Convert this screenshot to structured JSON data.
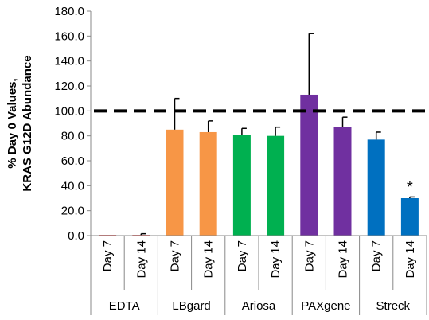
{
  "chart_data": {
    "type": "bar",
    "ylabel_lines": [
      "% Day 0 Values,",
      "KRAS G12D Abundance"
    ],
    "xlabel": "",
    "ylim": [
      0,
      180
    ],
    "yticks": [
      0,
      20,
      40,
      60,
      80,
      100,
      120,
      140,
      160,
      180
    ],
    "ytick_labels": [
      "0.0",
      "20.0",
      "40.0",
      "60.0",
      "80.0",
      "100.0",
      "120.0",
      "140.0",
      "160.0",
      "180.0"
    ],
    "grid": false,
    "legend": "none",
    "reference_line": {
      "y": 100,
      "style": "dashed"
    },
    "groups": [
      {
        "name": "EDTA",
        "color": "#C00000"
      },
      {
        "name": "LBgard",
        "color": "#F79646"
      },
      {
        "name": "Ariosa",
        "color": "#00B050"
      },
      {
        "name": "PAXgene",
        "color": "#7030A0"
      },
      {
        "name": "Streck",
        "color": "#0070C0"
      }
    ],
    "bars": [
      {
        "group": 0,
        "label": "Day 7",
        "value": 0.5,
        "error": 0
      },
      {
        "group": 0,
        "label": "Day 14",
        "value": 0.5,
        "error": 1
      },
      {
        "group": 1,
        "label": "Day 7",
        "value": 85,
        "error": 25
      },
      {
        "group": 1,
        "label": "Day 14",
        "value": 83,
        "error": 9
      },
      {
        "group": 2,
        "label": "Day 7",
        "value": 81,
        "error": 5
      },
      {
        "group": 2,
        "label": "Day 14",
        "value": 80,
        "error": 7
      },
      {
        "group": 3,
        "label": "Day 7",
        "value": 113,
        "error": 49
      },
      {
        "group": 3,
        "label": "Day 14",
        "value": 87,
        "error": 8
      },
      {
        "group": 4,
        "label": "Day 7",
        "value": 77,
        "error": 6
      },
      {
        "group": 4,
        "label": "Day 14",
        "value": 30,
        "error": 1,
        "annotation": "*"
      }
    ]
  }
}
